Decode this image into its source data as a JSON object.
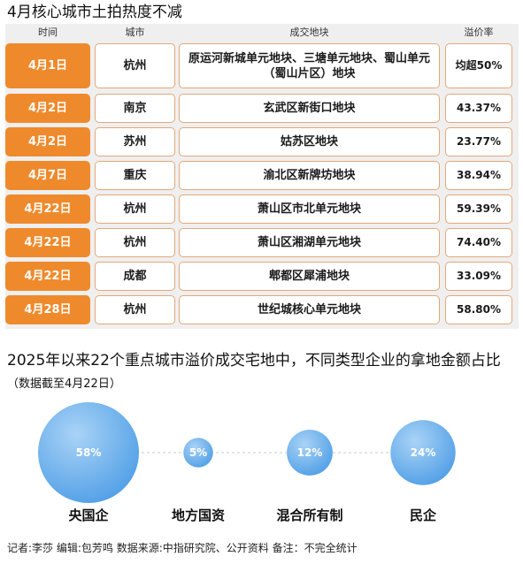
{
  "title": "4月核心城市土拍热度不减",
  "table": {
    "headers": [
      "时间",
      "城市",
      "成交地块",
      "溢价率"
    ],
    "rows": [
      {
        "date": "4月1日",
        "city": "杭州",
        "land": "原运河新城单元地块、三塘单元地块、蜀山单元（蜀山片区）地块",
        "premium": "均超50%"
      },
      {
        "date": "4月2日",
        "city": "南京",
        "land": "玄武区新街口地块",
        "premium": "43.37%"
      },
      {
        "date": "4月2日",
        "city": "苏州",
        "land": "姑苏区地块",
        "premium": "23.77%"
      },
      {
        "date": "4月7日",
        "city": "重庆",
        "land": "渝北区新牌坊地块",
        "premium": "38.94%"
      },
      {
        "date": "4月22日",
        "city": "杭州",
        "land": "萧山区市北单元地块",
        "premium": "59.39%"
      },
      {
        "date": "4月22日",
        "city": "杭州",
        "land": "萧山区湘湖单元地块",
        "premium": "74.40%"
      },
      {
        "date": "4月22日",
        "city": "成都",
        "land": "郫都区犀浦地块",
        "premium": "33.09%"
      },
      {
        "date": "4月28日",
        "city": "杭州",
        "land": "世纪城核心单元地块",
        "premium": "58.80%"
      }
    ]
  },
  "section": {
    "title": "2025年以来22个重点城市溢价成交宅地中，不同类型企业的拿地金额占比",
    "subtitle": "（数据截至4月22日）"
  },
  "chart_data": {
    "type": "bubble",
    "categories": [
      "央国企",
      "地方国资",
      "混合所有制",
      "民企"
    ],
    "values": [
      58,
      5,
      12,
      24
    ],
    "labels": [
      "58%",
      "5%",
      "12%",
      "24%"
    ],
    "unit": "%",
    "color": "#6aaee8"
  },
  "footer": "记者:李莎  编辑:包芳鸣  数据来源:中指研究院、公开资料 备注：不完全统计"
}
